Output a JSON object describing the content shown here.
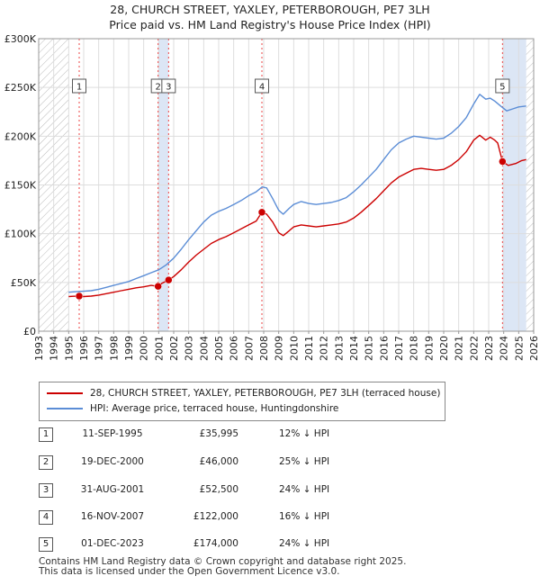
{
  "title": "28, CHURCH STREET, YAXLEY, PETERBOROUGH, PE7 3LH",
  "subtitle": "Price paid vs. HM Land Registry's House Price Index (HPI)",
  "colors": {
    "property": "#cc0000",
    "hpi": "#5b8dd6",
    "shade": "#dce6f5",
    "hatch": "#bbbbbb",
    "vline": "#ee4444",
    "grid": "#dddddd"
  },
  "chart_data": {
    "type": "line",
    "title": "28, CHURCH STREET, YAXLEY, PETERBOROUGH, PE7 3LH",
    "subtitle": "Price paid vs. HM Land Registry's House Price Index (HPI)",
    "xlim": [
      1993,
      2026
    ],
    "ylim": [
      0,
      300000
    ],
    "x_ticks": [
      1993,
      1994,
      1995,
      1996,
      1997,
      1998,
      1999,
      2000,
      2001,
      2002,
      2003,
      2004,
      2005,
      2006,
      2007,
      2008,
      2009,
      2010,
      2011,
      2012,
      2013,
      2014,
      2015,
      2016,
      2017,
      2018,
      2019,
      2020,
      2021,
      2022,
      2023,
      2024,
      2025,
      2026
    ],
    "y_ticks": [
      {
        "value": 0,
        "label": "£0"
      },
      {
        "value": 50000,
        "label": "£50K"
      },
      {
        "value": 100000,
        "label": "£100K"
      },
      {
        "value": 150000,
        "label": "£150K"
      },
      {
        "value": 200000,
        "label": "£200K"
      },
      {
        "value": 250000,
        "label": "£250K"
      },
      {
        "value": 300000,
        "label": "£300K"
      }
    ],
    "data_start": 1995.0,
    "data_end": 2025.5,
    "series": [
      {
        "name": "28, CHURCH STREET, YAXLEY, PETERBOROUGH, PE7 3LH (terraced house)",
        "color": "#cc0000",
        "points": [
          [
            1995.0,
            35500
          ],
          [
            1995.3,
            35800
          ],
          [
            1995.7,
            35995
          ],
          [
            1996.0,
            35500
          ],
          [
            1996.5,
            36000
          ],
          [
            1997.0,
            37000
          ],
          [
            1997.5,
            38500
          ],
          [
            1998.0,
            40000
          ],
          [
            1998.5,
            41500
          ],
          [
            1999.0,
            43000
          ],
          [
            1999.5,
            44500
          ],
          [
            2000.0,
            45500
          ],
          [
            2000.5,
            47000
          ],
          [
            2000.96,
            46000
          ],
          [
            2001.2,
            49000
          ],
          [
            2001.66,
            52500
          ],
          [
            2002.0,
            56000
          ],
          [
            2002.5,
            63000
          ],
          [
            2003.0,
            71000
          ],
          [
            2003.5,
            78000
          ],
          [
            2004.0,
            84000
          ],
          [
            2004.5,
            90000
          ],
          [
            2005.0,
            94000
          ],
          [
            2005.5,
            97000
          ],
          [
            2006.0,
            101000
          ],
          [
            2006.5,
            105000
          ],
          [
            2007.0,
            109000
          ],
          [
            2007.5,
            113000
          ],
          [
            2007.88,
            122000
          ],
          [
            2008.2,
            120000
          ],
          [
            2008.6,
            112000
          ],
          [
            2009.0,
            101000
          ],
          [
            2009.3,
            98000
          ],
          [
            2009.7,
            103000
          ],
          [
            2010.0,
            107000
          ],
          [
            2010.5,
            109000
          ],
          [
            2011.0,
            108000
          ],
          [
            2011.5,
            107000
          ],
          [
            2012.0,
            108000
          ],
          [
            2012.5,
            109000
          ],
          [
            2013.0,
            110000
          ],
          [
            2013.5,
            112000
          ],
          [
            2014.0,
            116000
          ],
          [
            2014.5,
            122000
          ],
          [
            2015.0,
            129000
          ],
          [
            2015.5,
            136000
          ],
          [
            2016.0,
            144000
          ],
          [
            2016.5,
            152000
          ],
          [
            2017.0,
            158000
          ],
          [
            2017.5,
            162000
          ],
          [
            2018.0,
            166000
          ],
          [
            2018.5,
            167000
          ],
          [
            2019.0,
            166000
          ],
          [
            2019.5,
            165000
          ],
          [
            2020.0,
            166000
          ],
          [
            2020.5,
            170000
          ],
          [
            2021.0,
            176000
          ],
          [
            2021.5,
            184000
          ],
          [
            2022.0,
            196000
          ],
          [
            2022.4,
            201000
          ],
          [
            2022.8,
            196000
          ],
          [
            2023.1,
            199000
          ],
          [
            2023.4,
            196000
          ],
          [
            2023.6,
            193000
          ],
          [
            2023.92,
            174000
          ],
          [
            2024.3,
            170000
          ],
          [
            2024.8,
            172000
          ],
          [
            2025.2,
            175000
          ],
          [
            2025.5,
            176000
          ]
        ]
      },
      {
        "name": "HPI: Average price, terraced house, Huntingdonshire",
        "color": "#5b8dd6",
        "points": [
          [
            1995.0,
            40000
          ],
          [
            1995.5,
            40500
          ],
          [
            1996.0,
            41000
          ],
          [
            1996.5,
            41500
          ],
          [
            1997.0,
            43000
          ],
          [
            1997.5,
            45000
          ],
          [
            1998.0,
            47000
          ],
          [
            1998.5,
            49000
          ],
          [
            1999.0,
            51000
          ],
          [
            1999.5,
            54000
          ],
          [
            2000.0,
            57000
          ],
          [
            2000.5,
            60000
          ],
          [
            2001.0,
            63000
          ],
          [
            2001.5,
            68000
          ],
          [
            2002.0,
            75000
          ],
          [
            2002.5,
            84000
          ],
          [
            2003.0,
            94000
          ],
          [
            2003.5,
            103000
          ],
          [
            2004.0,
            112000
          ],
          [
            2004.5,
            119000
          ],
          [
            2005.0,
            123000
          ],
          [
            2005.5,
            126000
          ],
          [
            2006.0,
            130000
          ],
          [
            2006.5,
            134000
          ],
          [
            2007.0,
            139000
          ],
          [
            2007.5,
            143000
          ],
          [
            2007.9,
            148000
          ],
          [
            2008.2,
            147000
          ],
          [
            2008.6,
            136000
          ],
          [
            2009.0,
            124000
          ],
          [
            2009.3,
            120000
          ],
          [
            2009.7,
            126000
          ],
          [
            2010.0,
            130000
          ],
          [
            2010.5,
            133000
          ],
          [
            2011.0,
            131000
          ],
          [
            2011.5,
            130000
          ],
          [
            2012.0,
            131000
          ],
          [
            2012.5,
            132000
          ],
          [
            2013.0,
            134000
          ],
          [
            2013.5,
            137000
          ],
          [
            2014.0,
            143000
          ],
          [
            2014.5,
            150000
          ],
          [
            2015.0,
            158000
          ],
          [
            2015.5,
            166000
          ],
          [
            2016.0,
            176000
          ],
          [
            2016.5,
            186000
          ],
          [
            2017.0,
            193000
          ],
          [
            2017.5,
            197000
          ],
          [
            2018.0,
            200000
          ],
          [
            2018.5,
            199000
          ],
          [
            2019.0,
            198000
          ],
          [
            2019.5,
            197000
          ],
          [
            2020.0,
            198000
          ],
          [
            2020.5,
            203000
          ],
          [
            2021.0,
            210000
          ],
          [
            2021.5,
            219000
          ],
          [
            2022.0,
            233000
          ],
          [
            2022.4,
            243000
          ],
          [
            2022.8,
            238000
          ],
          [
            2023.1,
            239000
          ],
          [
            2023.4,
            236000
          ],
          [
            2023.8,
            231000
          ],
          [
            2024.2,
            226000
          ],
          [
            2024.6,
            228000
          ],
          [
            2025.0,
            230000
          ],
          [
            2025.5,
            231000
          ]
        ]
      }
    ],
    "sales": [
      {
        "id": "1",
        "x": 1995.7,
        "price": 35995
      },
      {
        "id": "2",
        "x": 2000.96,
        "price": 46000
      },
      {
        "id": "3",
        "x": 2001.66,
        "price": 52500
      },
      {
        "id": "4",
        "x": 2007.88,
        "price": 122000
      },
      {
        "id": "5",
        "x": 2023.92,
        "price": 174000
      }
    ]
  },
  "legend": {
    "property": "28, CHURCH STREET, YAXLEY, PETERBOROUGH, PE7 3LH (terraced house)",
    "hpi": "HPI: Average price, terraced house, Huntingdonshire"
  },
  "transactions": [
    {
      "num": "1",
      "date": "11-SEP-1995",
      "price": "£35,995",
      "diff": "12% ↓ HPI"
    },
    {
      "num": "2",
      "date": "19-DEC-2000",
      "price": "£46,000",
      "diff": "25% ↓ HPI"
    },
    {
      "num": "3",
      "date": "31-AUG-2001",
      "price": "£52,500",
      "diff": "24% ↓ HPI"
    },
    {
      "num": "4",
      "date": "16-NOV-2007",
      "price": "£122,000",
      "diff": "16% ↓ HPI"
    },
    {
      "num": "5",
      "date": "01-DEC-2023",
      "price": "£174,000",
      "diff": "24% ↓ HPI"
    }
  ],
  "footer": {
    "line1": "Contains HM Land Registry data © Crown copyright and database right 2025.",
    "line2": "This data is licensed under the Open Government Licence v3.0."
  }
}
